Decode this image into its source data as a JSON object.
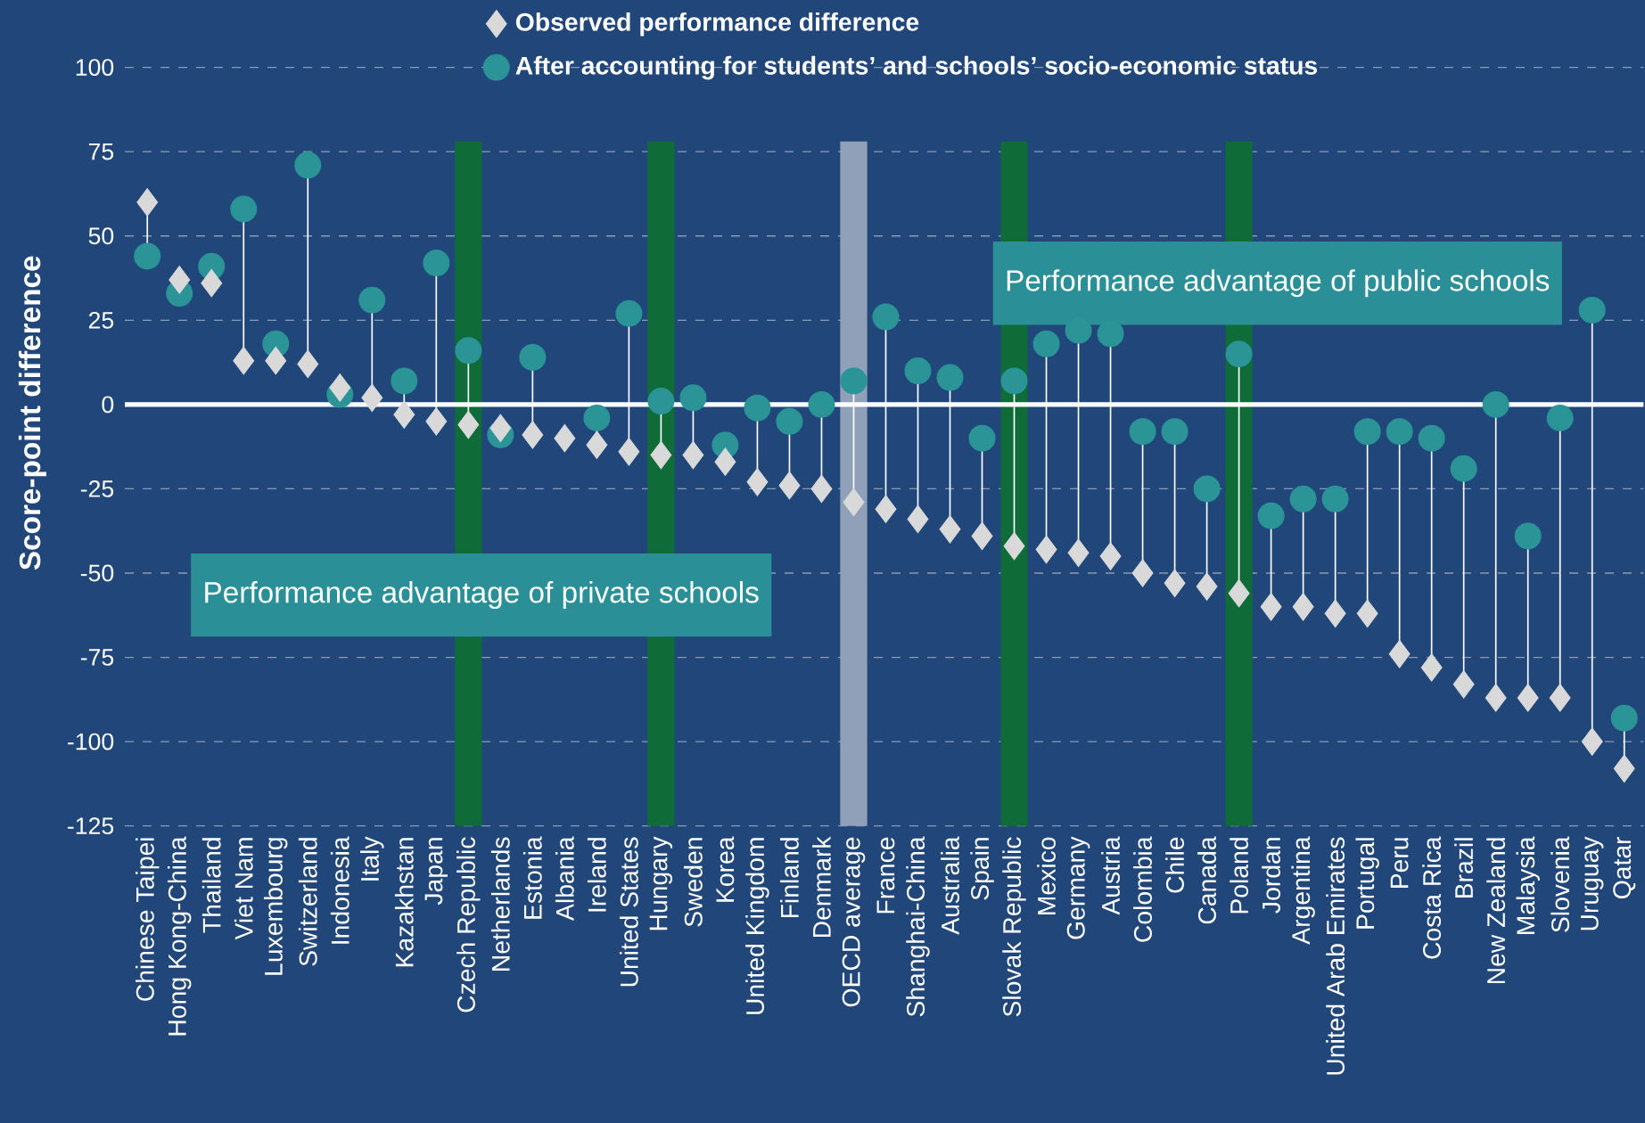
{
  "chart_data": {
    "type": "scatter",
    "ylabel": "Score-point difference",
    "categories": [
      "Chinese Taipei",
      "Hong Kong-China",
      "Thailand",
      "Viet Nam",
      "Luxembourg",
      "Switzerland",
      "Indonesia",
      "Italy",
      "Kazakhstan",
      "Japan",
      "Czech Republic",
      "Netherlands",
      "Estonia",
      "Albania",
      "Ireland",
      "United States",
      "Hungary",
      "Sweden",
      "Korea",
      "United Kingdom",
      "Finland",
      "Denmark",
      "OECD average",
      "France",
      "Shanghai-China",
      "Australia",
      "Spain",
      "Slovak Republic",
      "Mexico",
      "Germany",
      "Austria",
      "Colombia",
      "Chile",
      "Canada",
      "Poland",
      "Jordan",
      "Argentina",
      "United Arab Emirates",
      "Portugal",
      "Peru",
      "Costa Rica",
      "Brazil",
      "New Zealand",
      "Malaysia",
      "Slovenia",
      "Uruguay",
      "Qatar"
    ],
    "series": [
      {
        "name": "Observed performance difference",
        "color": "#d9d9d9",
        "marker": "diamond",
        "values": [
          60,
          37,
          36,
          13,
          13,
          12,
          5,
          2,
          -3,
          -5,
          -6,
          -7,
          -9,
          -10,
          -12,
          -14,
          -15,
          -15,
          -17,
          -23,
          -24,
          -25,
          -29,
          -31,
          -34,
          -37,
          -39,
          -42,
          -43,
          -44,
          -45,
          -50,
          -53,
          -54,
          -56,
          -60,
          -60,
          -62,
          -62,
          -74,
          -78,
          -83,
          -87,
          -87,
          -87,
          -100,
          -108
        ]
      },
      {
        "name": "After accounting for students’ and schools’ socio-economic status",
        "color": "#2a9497",
        "marker": "circle",
        "values": [
          44,
          33,
          41,
          58,
          18,
          71,
          3,
          31,
          7,
          42,
          16,
          -9,
          14,
          null,
          -4,
          27,
          1,
          2,
          -12,
          -1,
          -5,
          0,
          7,
          26,
          10,
          8,
          -10,
          7,
          18,
          22,
          21,
          -8,
          -8,
          -25,
          15,
          -33,
          -28,
          -28,
          -8,
          -8,
          -10,
          -19,
          0,
          -39,
          -4,
          28,
          -93
        ]
      }
    ],
    "ylim": [
      -125,
      120
    ],
    "yticks": [
      -125,
      -100,
      -75,
      -50,
      -25,
      0,
      25,
      50,
      75,
      100
    ],
    "grid": "y",
    "legend": "top",
    "ref_lines": [
      {
        "axis": "y",
        "value": 0,
        "color": "#ffffff"
      }
    ],
    "bands": [
      {
        "axis": "x",
        "from": "Czech Republic",
        "to": "Czech Republic",
        "color": "#0f6b38"
      },
      {
        "axis": "x",
        "from": "Hungary",
        "to": "Hungary",
        "color": "#0f6b38"
      },
      {
        "axis": "x",
        "from": "OECD average",
        "to": "OECD average",
        "color": "#8fa0b8"
      },
      {
        "axis": "x",
        "from": "Slovak Republic",
        "to": "Slovak Republic",
        "color": "#0f6b38"
      },
      {
        "axis": "x",
        "from": "Poland",
        "to": "Poland",
        "color": "#0f6b38"
      }
    ],
    "annotations": [
      "Performance advantage of public schools",
      "Performance advantage of private schools"
    ]
  }
}
